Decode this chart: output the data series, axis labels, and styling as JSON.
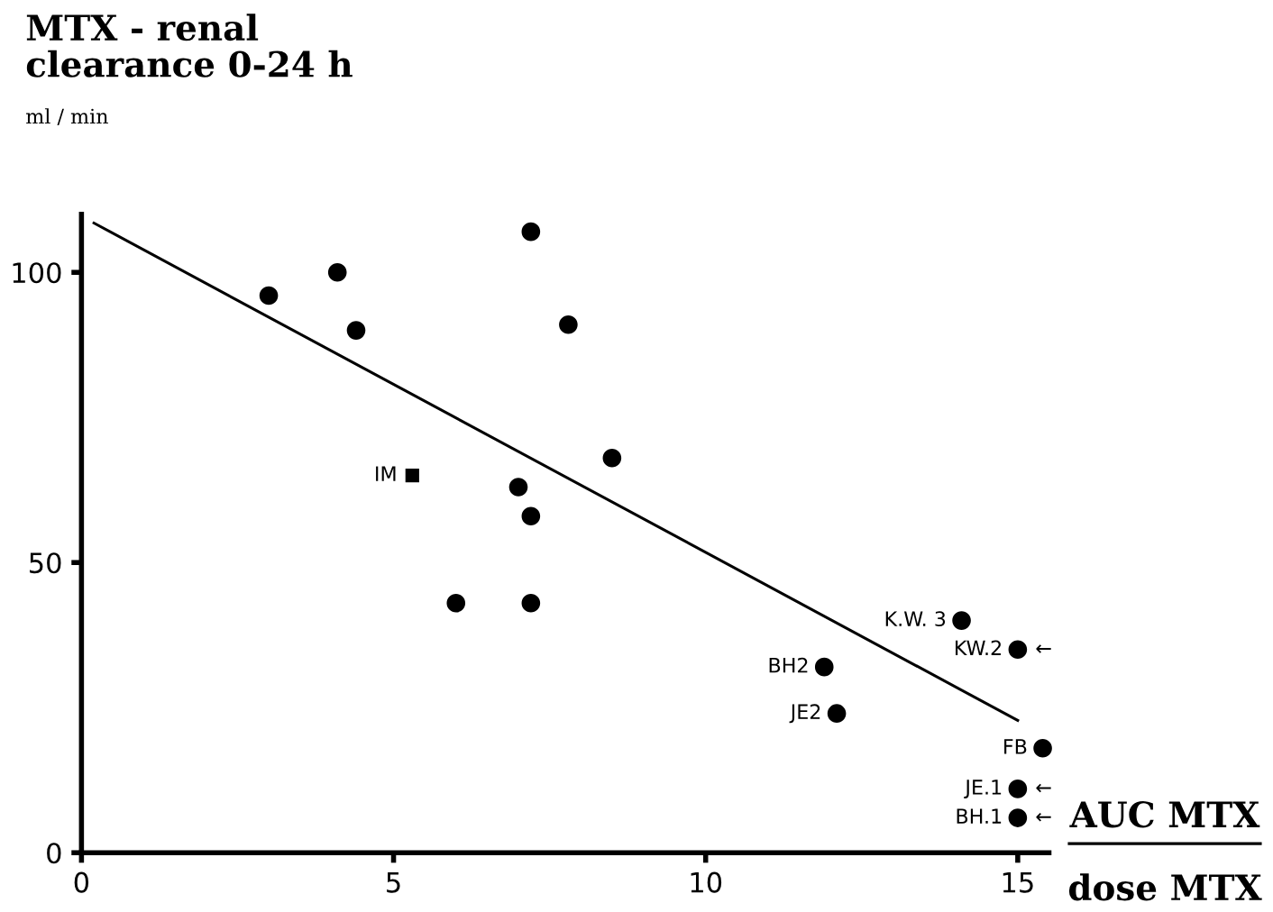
{
  "chart_data": {
    "type": "scatter",
    "ylabel": "MTX - renal\nclearance 0-24 h",
    "xlabel": "AUC MTX\ndose MTX",
    "xlim": [
      0,
      15.5
    ],
    "ylim": [
      0,
      110
    ],
    "xticks": [
      0,
      5,
      10,
      15
    ],
    "yticks": [
      0,
      50,
      100
    ],
    "grid": false,
    "series": [
      {
        "marker": "circle",
        "color": "#000000",
        "x": [
          3.0,
          4.1,
          4.4,
          7.2,
          7.8,
          8.5,
          7.0,
          7.2,
          6.0,
          7.2,
          14.1,
          15.0,
          11.9,
          12.1,
          15.4,
          15.0,
          15.0
        ],
        "values": [
          96,
          100,
          90,
          107,
          91,
          68,
          63,
          58,
          43,
          43,
          40,
          35,
          32,
          24,
          18,
          11,
          6
        ]
      },
      {
        "marker": "square",
        "color": "#000000",
        "x": [
          5.3
        ],
        "values": [
          65
        ]
      },
      {
        "type": "line",
        "marker": "none",
        "line_style": "solid",
        "color": "#000000",
        "x": [
          0.2,
          15.0
        ],
        "values": [
          108.5,
          22.8
        ]
      }
    ],
    "annotations": [
      "ml / min",
      {
        "text": "IM",
        "x": 5.3,
        "y": 65
      },
      {
        "text": "K.W. 3",
        "x": 14.1,
        "y": 40
      },
      {
        "text": "KW.2",
        "x": 15.0,
        "y": 35
      },
      {
        "text": "BH2",
        "x": 11.9,
        "y": 32
      },
      {
        "text": "JE2",
        "x": 12.1,
        "y": 24
      },
      {
        "text": "FB",
        "x": 15.4,
        "y": 18
      },
      {
        "text": "JE.1",
        "x": 15.0,
        "y": 11
      },
      {
        "text": "BH.1",
        "x": 15.0,
        "y": 6
      },
      {
        "text": "←",
        "x": 15.0,
        "y": 35
      },
      {
        "text": "←",
        "x": 15.0,
        "y": 11
      },
      {
        "text": "←",
        "x": 15.0,
        "y": 6
      }
    ]
  }
}
